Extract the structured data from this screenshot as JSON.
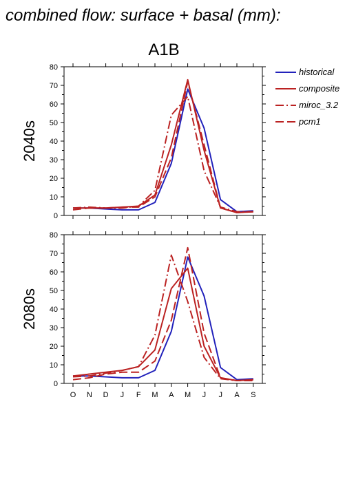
{
  "figure": {
    "supertitle": "combined flow: surface + basal (mm):",
    "scenario": "A1B"
  },
  "legend": [
    {
      "label": "historical",
      "color": "#2222bb",
      "dash": "solid"
    },
    {
      "label": "composite",
      "color": "#bb2222",
      "dash": "solid"
    },
    {
      "label": "miroc_3.2",
      "color": "#bb2222",
      "dash": "dashdot"
    },
    {
      "label": "pcm1",
      "color": "#bb2222",
      "dash": "dashed"
    }
  ],
  "chart_data": [
    {
      "type": "line",
      "title": "A1B",
      "ylabel": "2040s",
      "ylim": [
        0,
        80
      ],
      "yticks": [
        0,
        10,
        20,
        30,
        40,
        50,
        60,
        70,
        80
      ],
      "categories": [
        "O",
        "N",
        "D",
        "J",
        "F",
        "M",
        "A",
        "M",
        "J",
        "J",
        "A",
        "S"
      ],
      "grid": false,
      "series": [
        {
          "name": "historical",
          "values": [
            4,
            4,
            3.5,
            3,
            3,
            7,
            28,
            68,
            47,
            8.5,
            2,
            2.5
          ]
        },
        {
          "name": "composite",
          "values": [
            4,
            4,
            4,
            4.5,
            5,
            11,
            38,
            73,
            35,
            4,
            1.5,
            2
          ]
        },
        {
          "name": "miroc_3.2",
          "values": [
            4,
            4.5,
            4,
            4,
            5,
            13.5,
            54,
            64,
            24,
            4.5,
            2,
            2
          ]
        },
        {
          "name": "pcm1",
          "values": [
            3,
            4,
            4,
            4.5,
            4.5,
            10,
            31,
            72,
            38,
            4,
            1.5,
            2
          ]
        }
      ]
    },
    {
      "type": "line",
      "ylabel": "2080s",
      "ylim": [
        0,
        80
      ],
      "yticks": [
        0,
        10,
        20,
        30,
        40,
        50,
        60,
        70,
        80
      ],
      "categories": [
        "O",
        "N",
        "D",
        "J",
        "F",
        "M",
        "A",
        "M",
        "J",
        "J",
        "A",
        "S"
      ],
      "grid": false,
      "series": [
        {
          "name": "historical",
          "values": [
            4,
            4,
            3.5,
            3,
            3,
            7,
            28,
            68,
            47,
            8.5,
            2,
            2.5
          ]
        },
        {
          "name": "composite",
          "values": [
            4,
            5,
            6,
            7,
            9,
            18,
            51,
            62,
            20,
            3,
            1.5,
            2
          ]
        },
        {
          "name": "miroc_3.2",
          "values": [
            3.5,
            4,
            5.5,
            7,
            9,
            26,
            69,
            44,
            14,
            2.5,
            1.5,
            2
          ]
        },
        {
          "name": "pcm1",
          "values": [
            2,
            3,
            5,
            6,
            6,
            12,
            34,
            73,
            27,
            3,
            1.5,
            1.5
          ]
        }
      ]
    }
  ]
}
